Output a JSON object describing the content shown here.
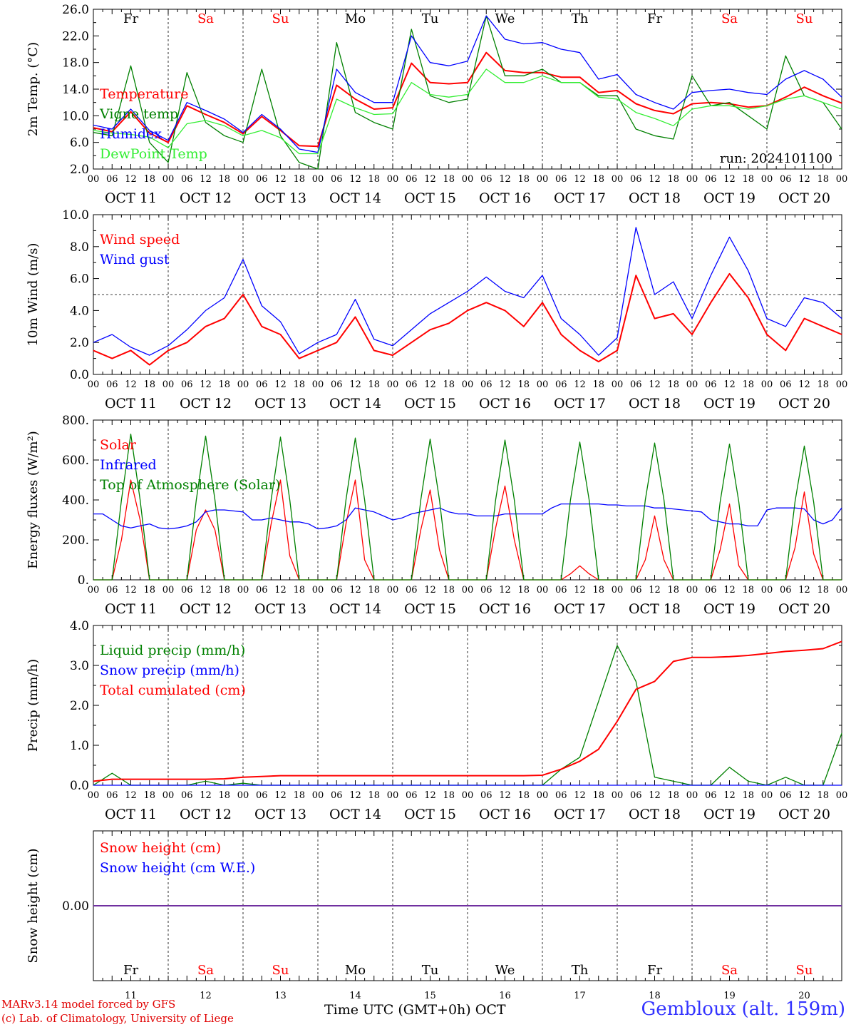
{
  "colors": {
    "red": "#ff0000",
    "green": "#008000",
    "blue": "#0000ff",
    "lightgreen": "#33ee33",
    "purple": "#7030a0",
    "text": "#000000"
  },
  "days": {
    "weekday_labels": [
      "Fr",
      "Sa",
      "Su",
      "Mo",
      "Tu",
      "We",
      "Th",
      "Fr",
      "Sa",
      "Su"
    ],
    "weekend_flags": [
      false,
      true,
      true,
      false,
      false,
      false,
      false,
      false,
      true,
      true
    ],
    "date_labels": [
      "OCT 11",
      "OCT 12",
      "OCT 13",
      "OCT 14",
      "OCT 15",
      "OCT 16",
      "OCT 17",
      "OCT 18",
      "OCT 19",
      "OCT 20"
    ],
    "day_numbers": [
      "11",
      "12",
      "13",
      "14",
      "15",
      "16",
      "17",
      "18",
      "19",
      "20"
    ],
    "hour_labels": [
      "00",
      "06",
      "12",
      "18"
    ],
    "final_hour_label": "00"
  },
  "footer": {
    "model_line": "MARv3.14 model forced by GFS",
    "copyright_line": "(c) Lab. of Climatology, University of Liege",
    "time_axis_label": "Time UTC (GMT+0h)",
    "month_label": "OCT",
    "station": "Gembloux (alt. 159m)"
  },
  "chart_data": [
    {
      "type": "line",
      "ylabel": "2m Temp. (°C)",
      "ylim": [
        2,
        26
      ],
      "yticks": [
        2,
        6,
        10,
        14,
        18,
        22,
        26
      ],
      "ytick_labels": [
        "2.0",
        "6.0",
        "10.0",
        "14.0",
        "18.0",
        "22.0",
        "26.0"
      ],
      "annotation": "run: 2024101100",
      "x_hours_from_oct11_00": [
        0,
        6,
        12,
        18,
        24,
        30,
        36,
        42,
        48,
        54,
        60,
        66,
        72,
        78,
        84,
        90,
        96,
        102,
        108,
        114,
        120,
        126,
        132,
        138,
        144,
        150,
        156,
        162,
        168,
        174,
        180,
        186,
        192,
        198,
        204,
        210,
        216,
        222,
        228,
        234,
        240
      ],
      "series": [
        {
          "name": "Temperature",
          "color": "red",
          "values": [
            8.2,
            7.6,
            10.6,
            7.4,
            6.0,
            11.5,
            10.2,
            9.0,
            7.3,
            9.9,
            7.8,
            5.5,
            5.4,
            14.6,
            12.5,
            11.0,
            11.2,
            17.9,
            15.0,
            14.8,
            15.0,
            19.5,
            16.8,
            16.5,
            16.5,
            15.8,
            15.8,
            13.5,
            13.8,
            11.8,
            10.8,
            10.3,
            11.8,
            12.0,
            11.8,
            11.3,
            11.5,
            12.8,
            14.3,
            13.0,
            11.9
          ]
        },
        {
          "name": "Vigne temp",
          "color": "green",
          "values": [
            7.5,
            7.0,
            17.5,
            6.0,
            3.0,
            16.5,
            9.0,
            7.0,
            6.0,
            17.0,
            7.0,
            3.0,
            2.0,
            21.0,
            10.5,
            9.0,
            8.0,
            23.0,
            13.0,
            12.0,
            12.5,
            25.0,
            16.0,
            16.0,
            17.0,
            15.0,
            15.0,
            13.0,
            13.0,
            8.0,
            7.0,
            6.5,
            16.0,
            11.5,
            12.0,
            10.0,
            8.0,
            19.0,
            13.0,
            12.0,
            8.0
          ]
        },
        {
          "name": "Humidex",
          "color": "blue",
          "values": [
            8.6,
            8.0,
            11.0,
            7.8,
            6.3,
            12.0,
            10.8,
            9.5,
            7.5,
            10.2,
            8.0,
            5.0,
            4.5,
            17.0,
            13.5,
            12.0,
            12.0,
            22.0,
            18.0,
            17.5,
            18.2,
            25.0,
            21.5,
            20.8,
            21.0,
            20.0,
            19.5,
            15.5,
            16.2,
            13.2,
            12.0,
            11.0,
            13.5,
            13.8,
            14.0,
            13.5,
            13.2,
            15.5,
            16.8,
            15.5,
            12.8
          ]
        },
        {
          "name": "DewPoint Temp",
          "color": "lightgreen",
          "values": [
            7.8,
            7.4,
            7.2,
            6.8,
            5.2,
            8.8,
            9.3,
            8.5,
            7.0,
            7.8,
            6.7,
            4.3,
            4.3,
            12.5,
            11.2,
            10.2,
            10.3,
            15.0,
            13.2,
            12.8,
            13.2,
            17.0,
            15.0,
            15.0,
            16.0,
            15.0,
            15.0,
            12.8,
            12.5,
            10.5,
            9.6,
            8.5,
            11.0,
            11.5,
            11.5,
            11.0,
            11.5,
            12.5,
            13.0,
            12.0,
            11.0
          ]
        }
      ]
    },
    {
      "type": "line",
      "ylabel": "10m Wind (m/s)",
      "ylim": [
        0,
        10
      ],
      "yticks": [
        0,
        2,
        4,
        6,
        8,
        10
      ],
      "ytick_labels": [
        "0.0",
        "2.0",
        "4.0",
        "6.0",
        "8.0",
        "10.0"
      ],
      "reference_line": 5,
      "x_hours_from_oct11_00": [
        0,
        6,
        12,
        18,
        24,
        30,
        36,
        42,
        48,
        54,
        60,
        66,
        72,
        78,
        84,
        90,
        96,
        102,
        108,
        114,
        120,
        126,
        132,
        138,
        144,
        150,
        156,
        162,
        168,
        174,
        180,
        186,
        192,
        198,
        204,
        210,
        216,
        222,
        228,
        234,
        240
      ],
      "series": [
        {
          "name": "Wind speed",
          "color": "red",
          "values": [
            1.5,
            1.0,
            1.5,
            0.6,
            1.5,
            2.0,
            3.0,
            3.5,
            5.0,
            3.0,
            2.5,
            1.0,
            1.5,
            2.0,
            3.6,
            1.5,
            1.2,
            2.0,
            2.8,
            3.2,
            4.0,
            4.5,
            4.0,
            3.0,
            4.5,
            2.5,
            1.5,
            0.8,
            1.5,
            6.2,
            3.5,
            3.8,
            2.5,
            4.5,
            6.3,
            4.8,
            2.5,
            1.5,
            3.5,
            3.0,
            2.5
          ]
        },
        {
          "name": "Wind gust",
          "color": "blue",
          "values": [
            2.0,
            2.5,
            1.7,
            1.2,
            1.8,
            2.8,
            4.0,
            4.8,
            7.2,
            4.3,
            3.3,
            1.3,
            2.0,
            2.5,
            4.7,
            2.2,
            1.8,
            2.8,
            3.8,
            4.5,
            5.2,
            6.1,
            5.2,
            4.8,
            6.2,
            3.5,
            2.5,
            1.2,
            2.3,
            9.2,
            5.0,
            5.8,
            3.5,
            6.2,
            8.6,
            6.5,
            3.5,
            3.0,
            4.8,
            4.5,
            3.5
          ]
        }
      ]
    },
    {
      "type": "line",
      "ylabel": "Energy fluxes (W/m²)",
      "ylim": [
        0,
        800
      ],
      "yticks": [
        0,
        200,
        400,
        600,
        800
      ],
      "ytick_labels": [
        "0.",
        "200.",
        "400.",
        "600.",
        "800."
      ],
      "x_hours_from_oct11_00": [
        0,
        3,
        6,
        9,
        12,
        15,
        18,
        21,
        24,
        27,
        30,
        33,
        36,
        39,
        42,
        45,
        48,
        51,
        54,
        57,
        60,
        63,
        66,
        69,
        72,
        75,
        78,
        81,
        84,
        87,
        90,
        93,
        96,
        99,
        102,
        105,
        108,
        111,
        114,
        117,
        120,
        123,
        126,
        129,
        132,
        135,
        138,
        141,
        144,
        147,
        150,
        153,
        156,
        159,
        162,
        165,
        168,
        171,
        174,
        177,
        180,
        183,
        186,
        189,
        192,
        195,
        198,
        201,
        204,
        207,
        210,
        213,
        216,
        219,
        222,
        225,
        228,
        231,
        234,
        237,
        240
      ],
      "series": [
        {
          "name": "Solar",
          "color": "red",
          "values": [
            0,
            0,
            0,
            200,
            500,
            300,
            0,
            0,
            0,
            0,
            0,
            250,
            350,
            250,
            0,
            0,
            0,
            0,
            0,
            280,
            500,
            120,
            0,
            0,
            0,
            0,
            0,
            280,
            500,
            100,
            0,
            0,
            0,
            0,
            0,
            250,
            450,
            150,
            0,
            0,
            0,
            0,
            0,
            260,
            470,
            200,
            0,
            0,
            0,
            0,
            0,
            30,
            70,
            30,
            0,
            0,
            0,
            0,
            0,
            100,
            320,
            100,
            0,
            0,
            0,
            0,
            0,
            150,
            380,
            70,
            0,
            0,
            0,
            0,
            0,
            160,
            440,
            130,
            0,
            0,
            0
          ]
        },
        {
          "name": "Infrared",
          "color": "blue",
          "values": [
            330,
            330,
            300,
            270,
            260,
            270,
            280,
            260,
            255,
            260,
            270,
            290,
            340,
            350,
            350,
            345,
            340,
            300,
            300,
            310,
            300,
            290,
            290,
            280,
            255,
            260,
            270,
            300,
            360,
            350,
            340,
            320,
            300,
            310,
            330,
            340,
            350,
            360,
            340,
            330,
            330,
            320,
            320,
            320,
            330,
            330,
            330,
            330,
            330,
            360,
            380,
            380,
            380,
            380,
            380,
            375,
            375,
            370,
            370,
            370,
            360,
            360,
            355,
            350,
            345,
            340,
            300,
            290,
            280,
            280,
            270,
            270,
            350,
            360,
            360,
            360,
            355,
            300,
            280,
            300,
            360
          ]
        },
        {
          "name": "Top of Atmosphere (Solar)",
          "color": "green",
          "values": [
            0,
            0,
            0,
            400,
            730,
            400,
            0,
            0,
            0,
            0,
            0,
            400,
            720,
            400,
            0,
            0,
            0,
            0,
            0,
            400,
            715,
            400,
            0,
            0,
            0,
            0,
            0,
            400,
            710,
            400,
            0,
            0,
            0,
            0,
            0,
            400,
            705,
            400,
            0,
            0,
            0,
            0,
            0,
            400,
            700,
            400,
            0,
            0,
            0,
            0,
            0,
            400,
            690,
            400,
            0,
            0,
            0,
            0,
            0,
            400,
            685,
            400,
            0,
            0,
            0,
            0,
            0,
            390,
            680,
            390,
            0,
            0,
            0,
            0,
            0,
            390,
            670,
            390,
            0,
            0,
            0
          ]
        }
      ]
    },
    {
      "type": "line",
      "ylabel": "Precip (mm/h)",
      "ylim": [
        0,
        4
      ],
      "yticks": [
        0,
        1,
        2,
        3,
        4
      ],
      "ytick_labels": [
        "0.0",
        "1.0",
        "2.0",
        "3.0",
        "4.0"
      ],
      "x_hours_from_oct11_00": [
        0,
        6,
        12,
        18,
        24,
        30,
        36,
        42,
        48,
        54,
        60,
        66,
        72,
        78,
        84,
        90,
        96,
        102,
        108,
        114,
        120,
        126,
        132,
        138,
        144,
        150,
        156,
        162,
        168,
        174,
        180,
        186,
        192,
        198,
        204,
        210,
        216,
        222,
        228,
        234,
        240
      ],
      "series": [
        {
          "name": "Liquid precip (mm/h)",
          "color": "green",
          "values": [
            0,
            0.3,
            0,
            0,
            0,
            0,
            0.1,
            0,
            0.05,
            0,
            0,
            0,
            0,
            0,
            0,
            0,
            0,
            0,
            0,
            0,
            0,
            0,
            0,
            0,
            0,
            0.4,
            0.7,
            2.1,
            3.5,
            2.6,
            0.2,
            0.1,
            0,
            0,
            0.45,
            0.1,
            0,
            0.2,
            0,
            0,
            1.3
          ]
        },
        {
          "name": "Snow precip (mm/h)",
          "color": "blue",
          "values": [
            0,
            0,
            0,
            0,
            0,
            0,
            0,
            0,
            0,
            0,
            0,
            0,
            0,
            0,
            0,
            0,
            0,
            0,
            0,
            0,
            0,
            0,
            0,
            0,
            0,
            0,
            0,
            0,
            0,
            0,
            0,
            0,
            0,
            0,
            0,
            0,
            0,
            0,
            0,
            0,
            0
          ]
        },
        {
          "name": "Total cumulated (cm)",
          "color": "red",
          "values": [
            0.1,
            0.15,
            0.15,
            0.15,
            0.15,
            0.15,
            0.15,
            0.16,
            0.2,
            0.22,
            0.24,
            0.24,
            0.24,
            0.24,
            0.24,
            0.24,
            0.24,
            0.24,
            0.24,
            0.24,
            0.24,
            0.24,
            0.24,
            0.24,
            0.25,
            0.4,
            0.6,
            0.9,
            1.6,
            2.4,
            2.6,
            3.1,
            3.2,
            3.2,
            3.22,
            3.25,
            3.3,
            3.35,
            3.38,
            3.42,
            3.6
          ]
        }
      ]
    },
    {
      "type": "line",
      "ylabel": "Snow height (cm)",
      "ylim": [
        -1,
        1
      ],
      "yticks": [
        0
      ],
      "ytick_labels": [
        "0.00"
      ],
      "x_hours_from_oct11_00": [
        0,
        240
      ],
      "series": [
        {
          "name": "Snow height (cm)",
          "color": "red",
          "values": [
            0,
            0
          ]
        },
        {
          "name": "Snow height (cm W.E.)",
          "color": "blue",
          "values": [
            0,
            0
          ]
        }
      ]
    }
  ]
}
